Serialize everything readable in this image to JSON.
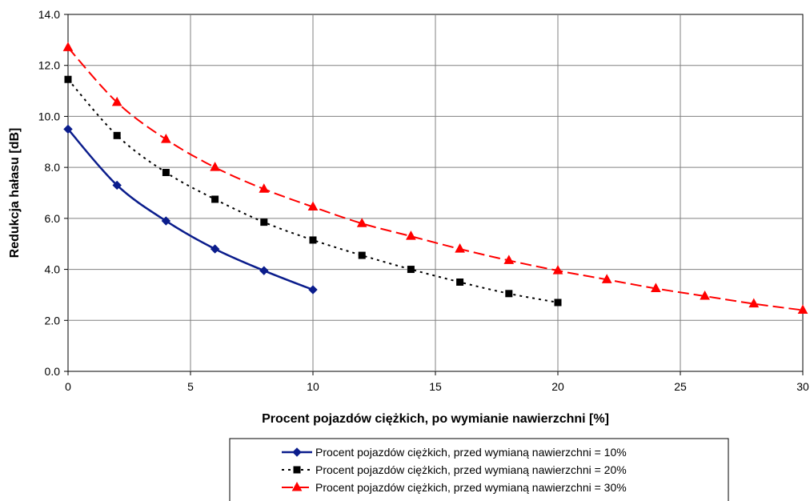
{
  "chart_data": {
    "type": "line",
    "title": "",
    "xlabel": "Procent pojazdów ciężkich, po wymianie nawierzchni [%]",
    "ylabel": "Redukcja hałasu [dB]",
    "xlim": [
      0,
      30
    ],
    "ylim": [
      0,
      14
    ],
    "xticks": [
      0,
      5,
      10,
      15,
      20,
      25,
      30
    ],
    "xtick_labels": [
      "0",
      "5",
      "10",
      "15",
      "20",
      "25",
      "30"
    ],
    "yticks": [
      0,
      2,
      4,
      6,
      8,
      10,
      12,
      14
    ],
    "ytick_labels": [
      "0.0",
      "2.0",
      "4.0",
      "6.0",
      "8.0",
      "10.0",
      "12.0",
      "14.0"
    ],
    "grid": true,
    "legend_position": "bottom-right",
    "series": [
      {
        "name": "Procent pojazdów ciężkich, przed wymianą nawierzchni = 10%",
        "color": "#0b1d8c",
        "dash": "solid",
        "marker": "diamond",
        "x": [
          0,
          2,
          4,
          6,
          8,
          10
        ],
        "y": [
          9.5,
          7.3,
          5.9,
          4.8,
          3.95,
          3.2
        ]
      },
      {
        "name": "Procent pojazdów ciężkich, przed wymianą nawierzchni = 20%",
        "color": "#000000",
        "dash": "dotted",
        "marker": "square",
        "x": [
          0,
          2,
          4,
          6,
          8,
          10,
          12,
          14,
          16,
          18,
          20
        ],
        "y": [
          11.45,
          9.25,
          7.8,
          6.75,
          5.85,
          5.15,
          4.55,
          4.0,
          3.5,
          3.05,
          2.7
        ]
      },
      {
        "name": "Procent pojazdów ciężkich, przed wymianą nawierzchni = 30%",
        "color": "#ff0000",
        "dash": "dashed",
        "marker": "triangle",
        "x": [
          0,
          2,
          4,
          6,
          8,
          10,
          12,
          14,
          16,
          18,
          20,
          22,
          24,
          26,
          28,
          30
        ],
        "y": [
          12.7,
          10.55,
          9.1,
          8.0,
          7.15,
          6.45,
          5.8,
          5.3,
          4.8,
          4.35,
          3.95,
          3.6,
          3.25,
          2.95,
          2.65,
          2.4
        ]
      }
    ]
  }
}
